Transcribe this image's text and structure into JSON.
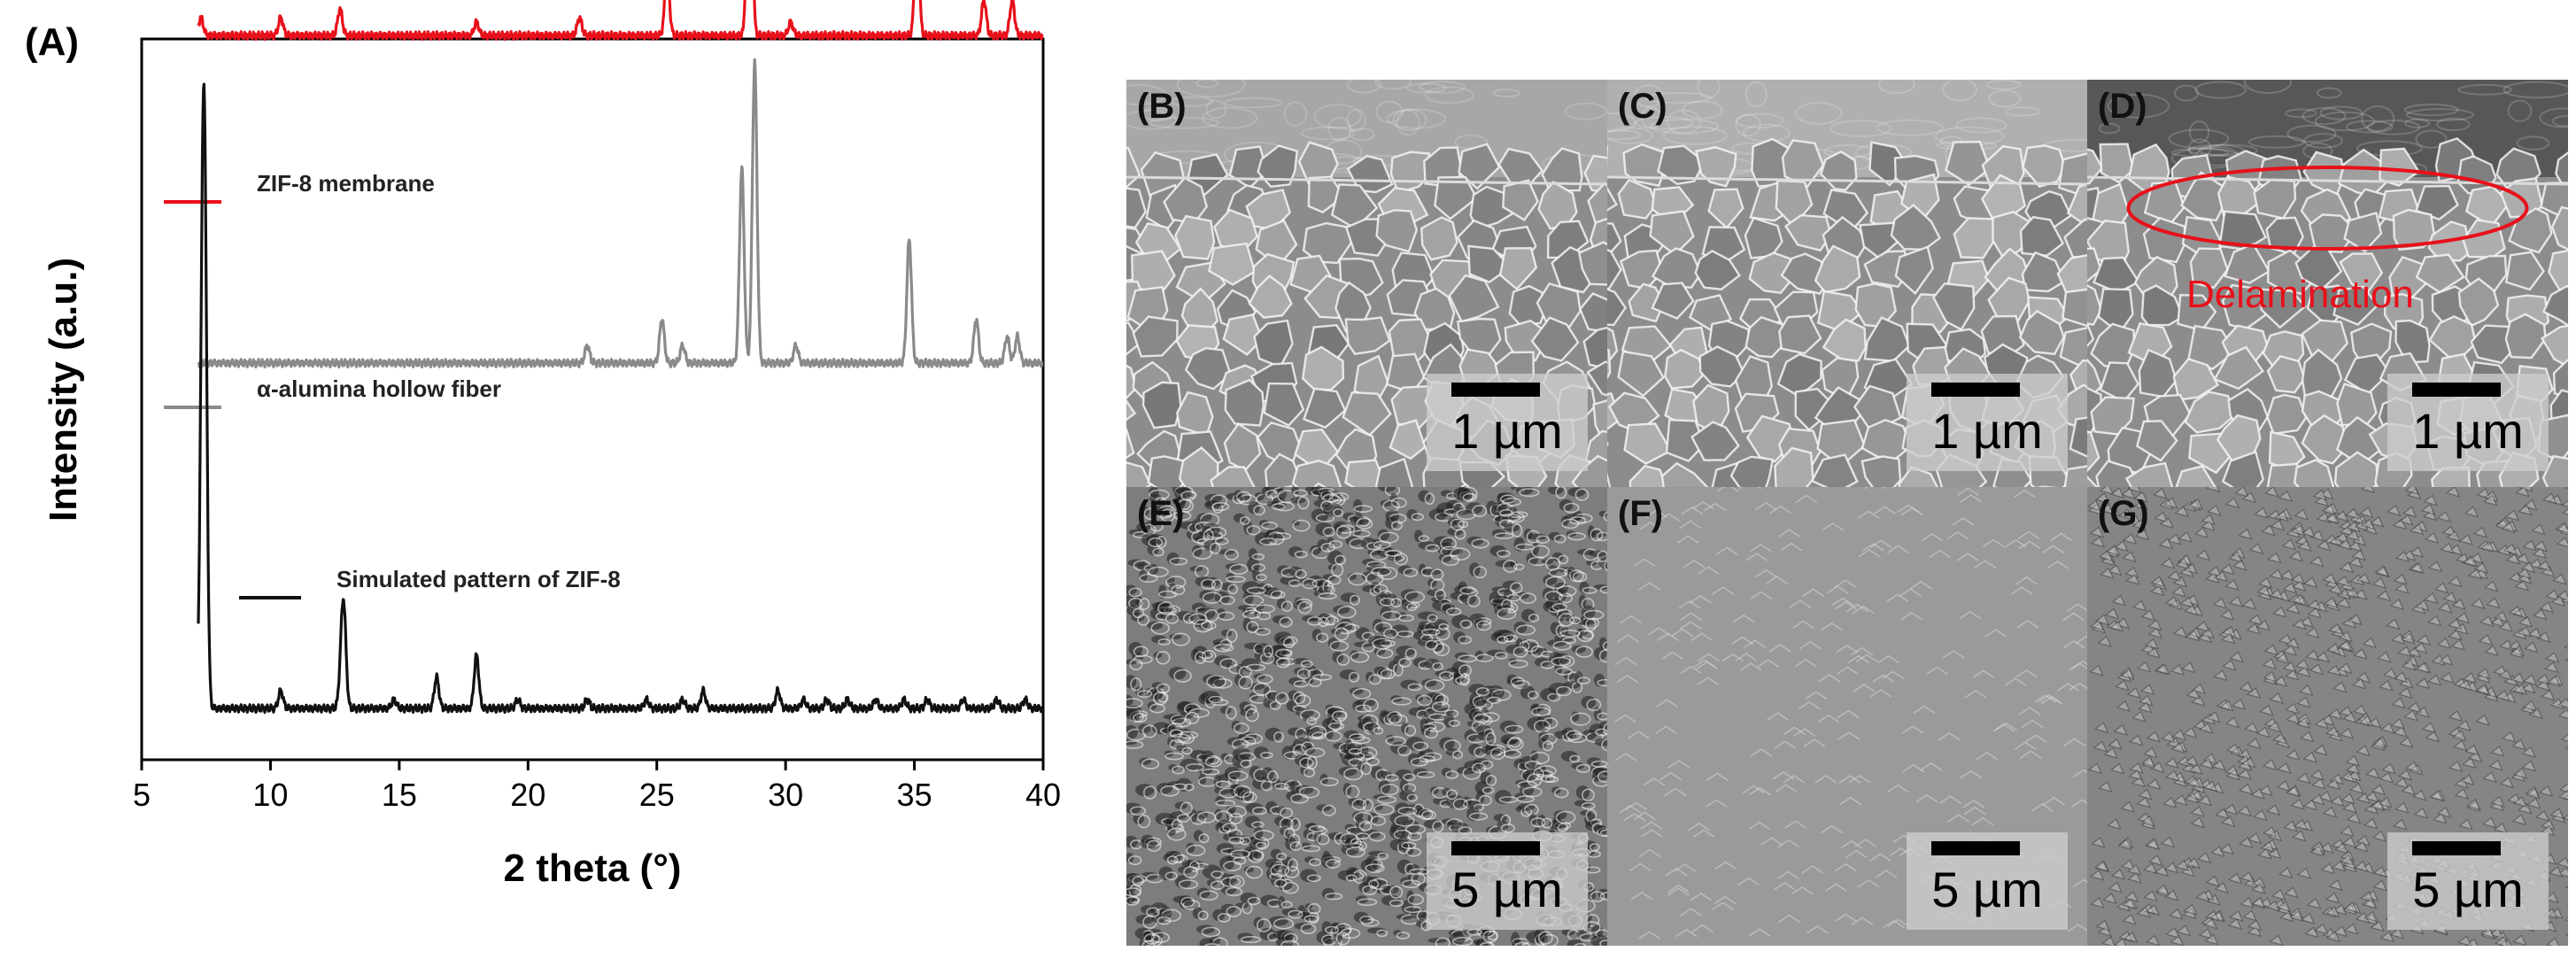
{
  "panel_a_label": "(A)",
  "chart_data": {
    "type": "line",
    "xlabel": "2 theta (°)",
    "ylabel": "Intensity (a.u.)",
    "xlim": [
      5,
      40
    ],
    "xticks": [
      5,
      10,
      15,
      20,
      25,
      30,
      35,
      40
    ],
    "legend_placement": "inline-left",
    "series": [
      {
        "name": "ZIF-8 membrane",
        "color": "#e8101a",
        "baseline": 0.76,
        "peaks": [
          [
            7.3,
            0.02
          ],
          [
            10.4,
            0.02
          ],
          [
            12.7,
            0.03
          ],
          [
            18.0,
            0.015
          ],
          [
            22.0,
            0.02
          ],
          [
            25.4,
            0.07
          ],
          [
            28.6,
            0.35
          ],
          [
            30.2,
            0.015
          ],
          [
            35.1,
            0.11
          ],
          [
            37.7,
            0.04
          ],
          [
            38.8,
            0.04
          ]
        ]
      },
      {
        "name": "α-alumina hollow fiber",
        "color": "#8a8a8a",
        "baseline": 0.39,
        "peaks": [
          [
            22.3,
            0.02
          ],
          [
            25.2,
            0.05
          ],
          [
            26.0,
            0.02
          ],
          [
            28.3,
            0.22
          ],
          [
            28.8,
            0.34
          ],
          [
            30.4,
            0.02
          ],
          [
            34.8,
            0.14
          ],
          [
            37.4,
            0.05
          ],
          [
            38.6,
            0.03
          ],
          [
            39.0,
            0.03
          ]
        ]
      },
      {
        "name": "Simulated pattern of ZIF-8",
        "color": "#111111",
        "baseline": 0.0,
        "peaks": [
          [
            7.35,
            0.34
          ],
          [
            7.45,
            0.48
          ],
          [
            10.4,
            0.02
          ],
          [
            12.75,
            0.04
          ],
          [
            12.85,
            0.1
          ],
          [
            14.8,
            0.01
          ],
          [
            16.45,
            0.035
          ],
          [
            18.0,
            0.06
          ],
          [
            19.6,
            0.01
          ],
          [
            22.3,
            0.01
          ],
          [
            24.6,
            0.01
          ],
          [
            26.0,
            0.01
          ],
          [
            26.8,
            0.02
          ],
          [
            29.7,
            0.02
          ],
          [
            30.7,
            0.01
          ],
          [
            31.6,
            0.01
          ],
          [
            32.4,
            0.01
          ],
          [
            33.5,
            0.01
          ],
          [
            34.6,
            0.01
          ],
          [
            35.5,
            0.01
          ],
          [
            36.9,
            0.01
          ],
          [
            38.2,
            0.01
          ],
          [
            39.3,
            0.01
          ]
        ]
      }
    ]
  },
  "sem_panels": [
    {
      "label": "(B)",
      "scale": "1 µm",
      "type": "cross-section",
      "texture": "coarse",
      "top_tone": "#a7a7a7"
    },
    {
      "label": "(C)",
      "scale": "1 µm",
      "type": "cross-section",
      "texture": "coarse",
      "top_tone": "#b0b0b0"
    },
    {
      "label": "(D)",
      "scale": "1 µm",
      "type": "cross-section",
      "texture": "coarse",
      "top_tone": "#575757",
      "annotation": "Delamination"
    },
    {
      "label": "(E)",
      "scale": "5 µm",
      "type": "surface",
      "texture": "porous",
      "top_tone": ""
    },
    {
      "label": "(F)",
      "scale": "5 µm",
      "type": "surface",
      "texture": "smooth",
      "top_tone": ""
    },
    {
      "label": "(G)",
      "scale": "5 µm",
      "type": "surface",
      "texture": "grainy",
      "top_tone": ""
    }
  ]
}
